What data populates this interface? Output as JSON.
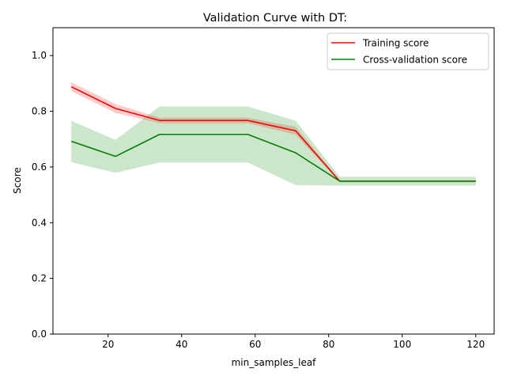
{
  "chart_data": {
    "type": "line",
    "title": "Validation Curve with DT:",
    "xlabel": "min_samples_leaf",
    "ylabel": "Score",
    "xlim": [
      5,
      125
    ],
    "ylim": [
      0.0,
      1.1
    ],
    "x_ticks": [
      20,
      40,
      60,
      80,
      100,
      120
    ],
    "y_ticks": [
      0.0,
      0.2,
      0.4,
      0.6,
      0.8,
      1.0
    ],
    "x_tick_labels": [
      "20",
      "40",
      "60",
      "80",
      "100",
      "120"
    ],
    "y_tick_labels": [
      "0.0",
      "0.2",
      "0.4",
      "0.6",
      "0.8",
      "1.0"
    ],
    "x": [
      10,
      22,
      34,
      46,
      58,
      71,
      83,
      95,
      107,
      120
    ],
    "grid": false,
    "legend_position": "top-right",
    "series": [
      {
        "name": "Training score",
        "color": "#ff0000",
        "band_color": "#ff0000",
        "band_opacity": 0.2,
        "values": [
          0.888,
          0.81,
          0.767,
          0.767,
          0.767,
          0.73,
          0.549,
          0.549,
          0.549,
          0.549
        ],
        "band_lower": [
          0.872,
          0.794,
          0.757,
          0.757,
          0.757,
          0.716,
          0.546,
          0.546,
          0.546,
          0.546
        ],
        "band_upper": [
          0.904,
          0.826,
          0.777,
          0.777,
          0.777,
          0.744,
          0.552,
          0.552,
          0.552,
          0.552
        ]
      },
      {
        "name": "Cross-validation score",
        "color": "#008000",
        "band_color": "#008000",
        "band_opacity": 0.2,
        "values": [
          0.692,
          0.638,
          0.717,
          0.717,
          0.717,
          0.651,
          0.549,
          0.549,
          0.549,
          0.549
        ],
        "band_lower": [
          0.617,
          0.579,
          0.616,
          0.616,
          0.616,
          0.535,
          0.533,
          0.533,
          0.533,
          0.533
        ],
        "band_upper": [
          0.766,
          0.697,
          0.817,
          0.817,
          0.817,
          0.766,
          0.565,
          0.565,
          0.565,
          0.565
        ]
      }
    ]
  }
}
